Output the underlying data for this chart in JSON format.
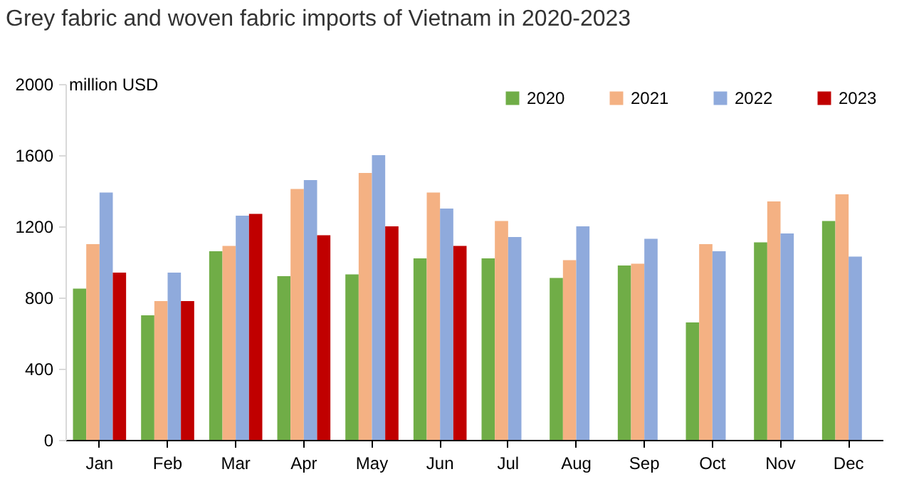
{
  "chart_data": {
    "type": "bar",
    "title": "Grey fabric and woven fabric imports of Vietnam in 2020-2023",
    "ylabel": "million USD",
    "categories": [
      "Jan",
      "Feb",
      "Mar",
      "Apr",
      "May",
      "Jun",
      "Jul",
      "Aug",
      "Sep",
      "Oct",
      "Nov",
      "Dec"
    ],
    "series": [
      {
        "name": "2020",
        "color": "#70ad47",
        "values": [
          850,
          700,
          1060,
          920,
          930,
          1020,
          1020,
          910,
          980,
          660,
          1110,
          1230
        ]
      },
      {
        "name": "2021",
        "color": "#f4b183",
        "values": [
          1100,
          780,
          1090,
          1410,
          1500,
          1390,
          1230,
          1010,
          990,
          1100,
          1340,
          1380
        ]
      },
      {
        "name": "2022",
        "color": "#8faadc",
        "values": [
          1390,
          940,
          1260,
          1460,
          1600,
          1300,
          1140,
          1200,
          1130,
          1060,
          1160,
          1030
        ]
      },
      {
        "name": "2023",
        "color": "#c00000",
        "values": [
          940,
          780,
          1270,
          1150,
          1200,
          1090,
          null,
          null,
          null,
          null,
          null,
          null
        ]
      }
    ],
    "ylim": [
      0,
      2000
    ],
    "yticks": [
      0,
      400,
      800,
      1200,
      1600,
      2000
    ],
    "grid": false,
    "legend": "top right"
  }
}
